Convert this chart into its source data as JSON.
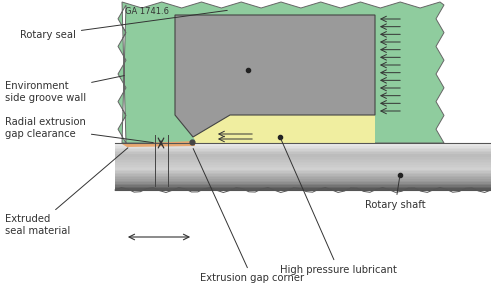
{
  "bg_color": "#ffffff",
  "green_color": "#8fcc9e",
  "gray_seal_color": "#9a9a9a",
  "yellow_lubricant": "#f0eea0",
  "orange_extruded": "#e8a870",
  "label_color": "#333333",
  "title_text": "GA 1741.6",
  "labels": {
    "rotary_seal": "Rotary seal",
    "env_groove": "Environment\nside groove wall",
    "radial_gap": "Radial extrusion\ngap clearance",
    "extruded": "Extruded\nseal material",
    "extrusion_corner": "Extrusion gap corner",
    "high_pressure": "High pressure lubricant",
    "rotary_shaft": "Rotary shaft"
  }
}
